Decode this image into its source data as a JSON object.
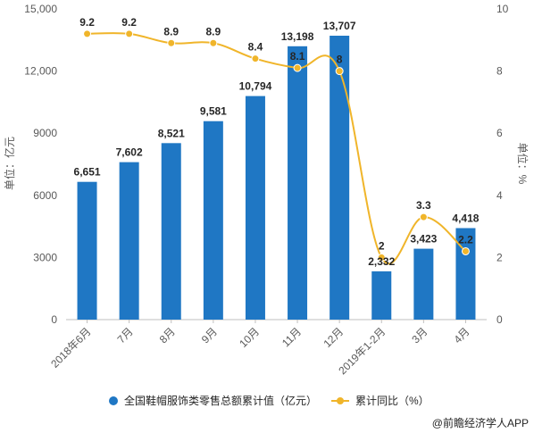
{
  "chart_data": {
    "type": "bar",
    "categories": [
      "2018年6月",
      "7月",
      "8月",
      "9月",
      "10月",
      "11月",
      "12月",
      "2019年1-2月",
      "3月",
      "4月"
    ],
    "series": [
      {
        "name": "全国鞋帽服饰类零售总额累计值（亿元）",
        "type": "bar",
        "axis": "left",
        "color": "#1f77c4",
        "values": [
          6651,
          7602,
          8521,
          9581,
          10794,
          13198,
          13707,
          2332,
          3423,
          4418
        ],
        "labels": [
          "6,651",
          "7,602",
          "8,521",
          "9,581",
          "10,794",
          "13,198",
          "13,707",
          "2,332",
          "3,423",
          "4,418"
        ]
      },
      {
        "name": "累计同比（%）",
        "type": "line",
        "axis": "right",
        "color": "#f0b52a",
        "values": [
          9.2,
          9.2,
          8.9,
          8.9,
          8.4,
          8.1,
          8,
          2,
          3.3,
          2.2
        ],
        "labels": [
          "9.2",
          "9.2",
          "8.9",
          "8.9",
          "8.4",
          "8.1",
          "8",
          "2",
          "3.3",
          "2.2"
        ]
      }
    ],
    "y_left": {
      "label": "单位：亿元",
      "range": [
        0,
        15000
      ],
      "ticks": [
        "0",
        "3000",
        "6000",
        "9000",
        "12,000",
        "15,000"
      ],
      "tick_values": [
        0,
        3000,
        6000,
        9000,
        12000,
        15000
      ]
    },
    "y_right": {
      "label": "单位：%",
      "range": [
        0,
        10
      ],
      "ticks": [
        "0",
        "2",
        "4",
        "6",
        "8",
        "10"
      ],
      "tick_values": [
        0,
        2,
        4,
        6,
        8,
        10
      ]
    },
    "grid": false,
    "legend": "bottom-center"
  },
  "source": "@前瞻经济学人APP"
}
